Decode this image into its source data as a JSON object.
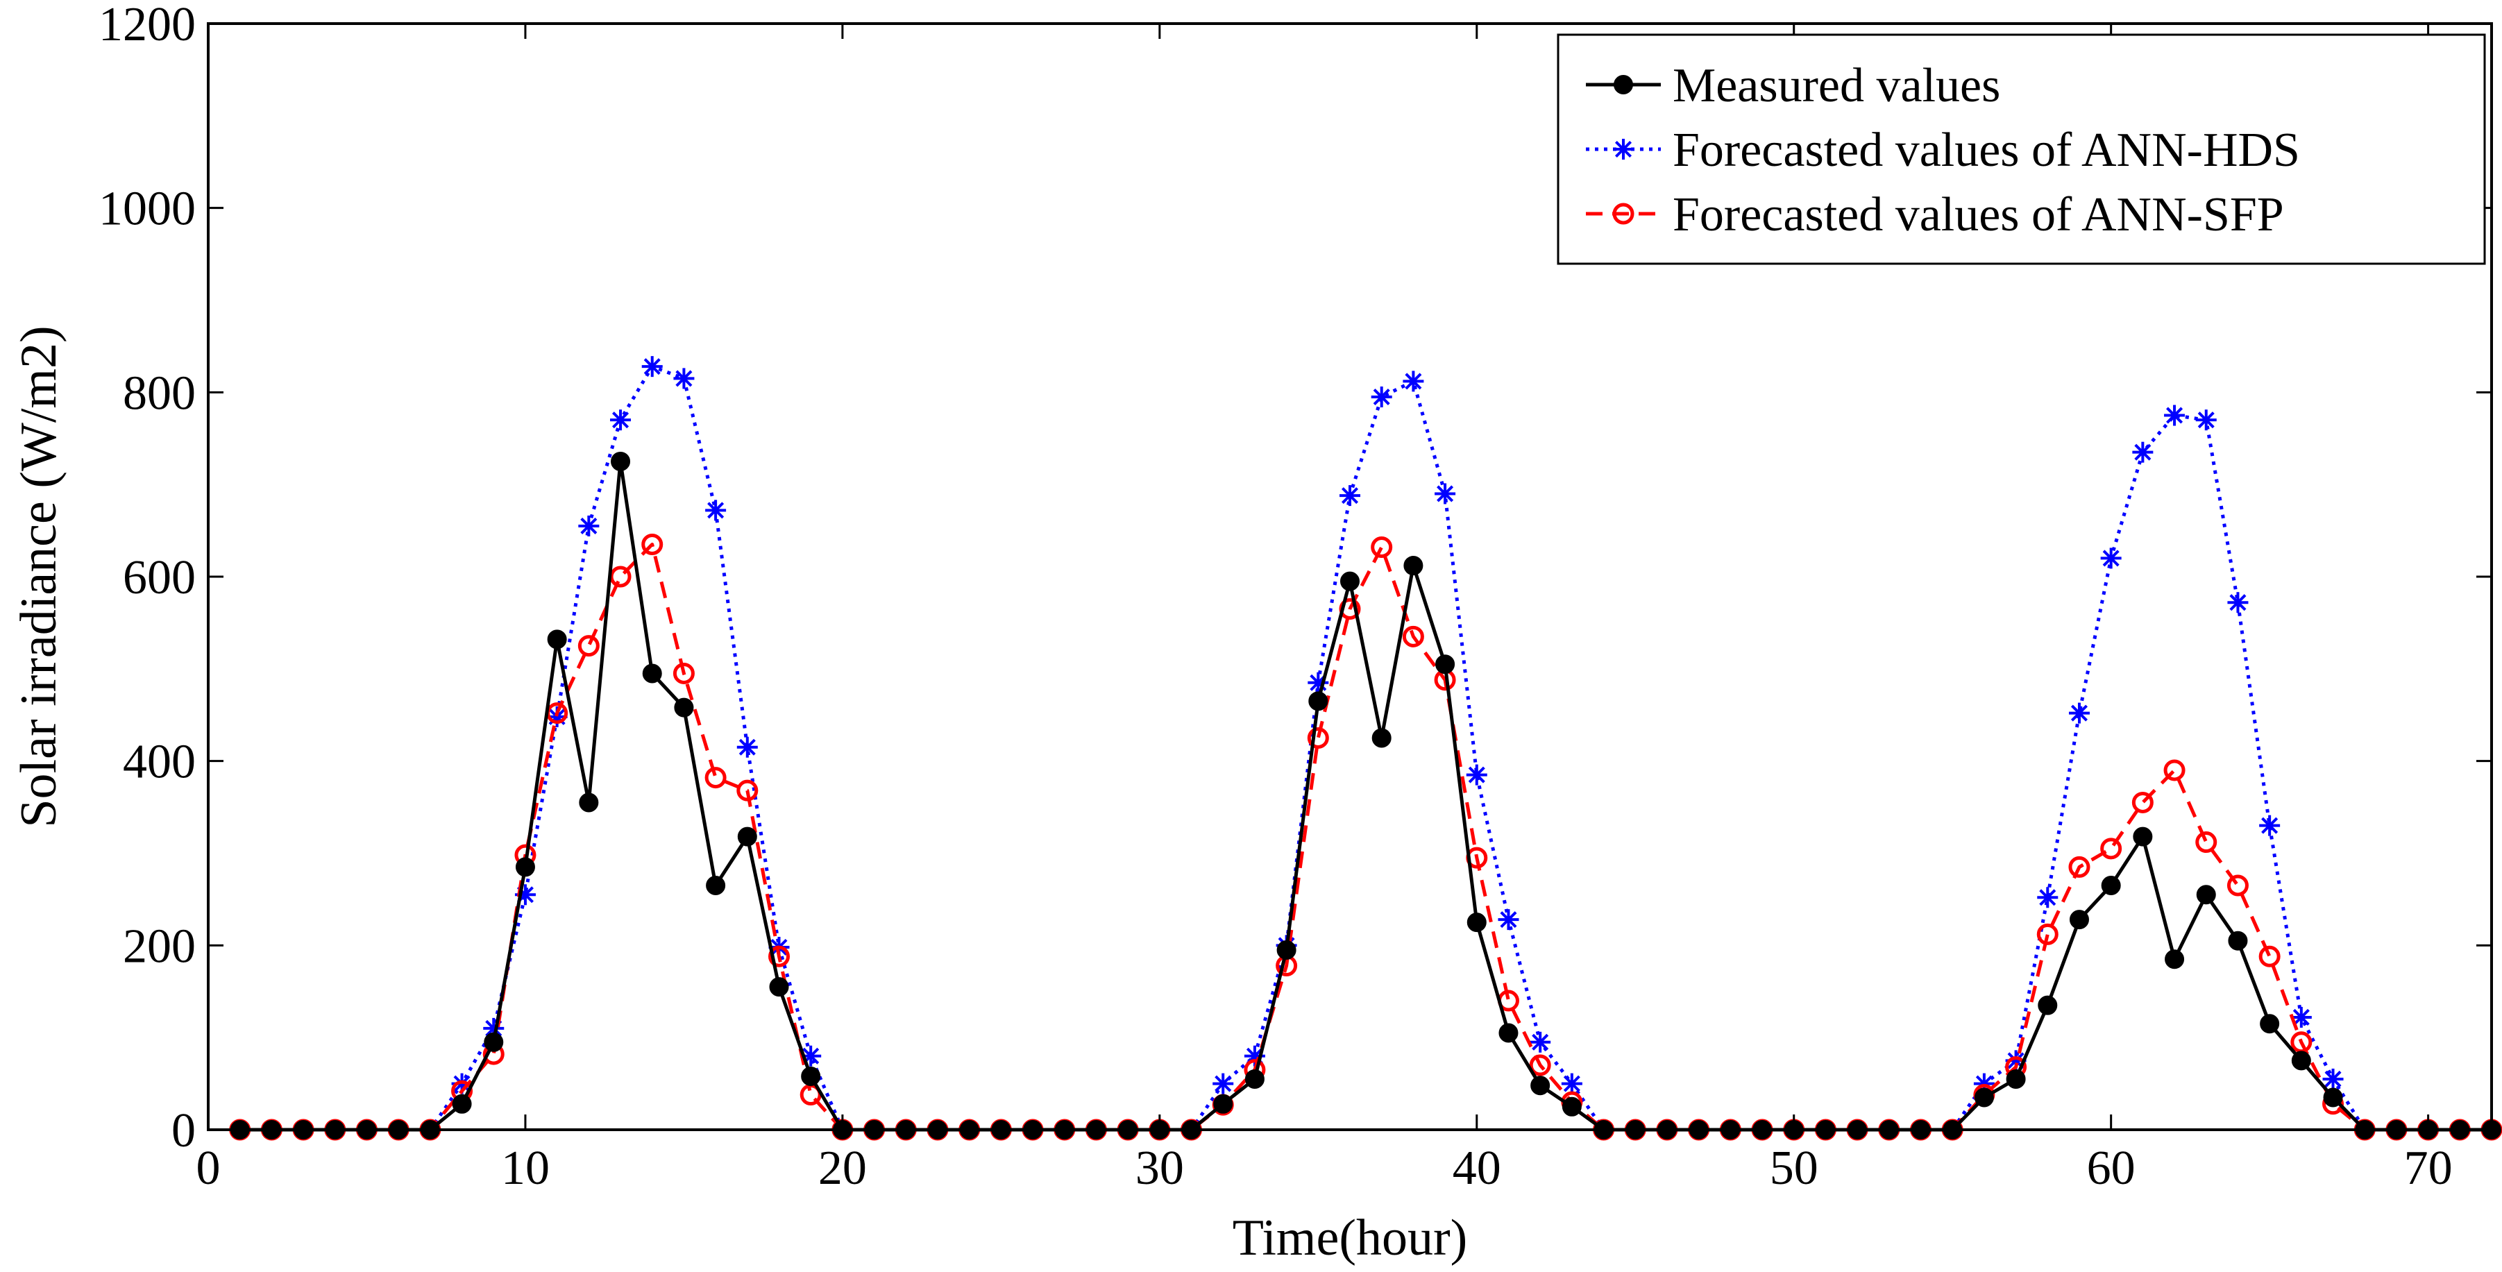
{
  "chart_data": {
    "type": "line",
    "title": "",
    "xlabel": "Time(hour)",
    "ylabel": "Solar irradiance (W/m2)",
    "xlim": [
      0,
      72
    ],
    "ylim": [
      0,
      1200
    ],
    "xticks": [
      0,
      10,
      20,
      30,
      40,
      50,
      60,
      70
    ],
    "yticks": [
      0,
      200,
      400,
      600,
      800,
      1000,
      1200
    ],
    "xtick_labels": [
      "0",
      "10",
      "20",
      "30",
      "40",
      "50",
      "60",
      "70"
    ],
    "ytick_labels": [
      "0",
      "200",
      "400",
      "600",
      "800",
      "1000",
      "1200"
    ],
    "grid": false,
    "legend_position": "top-right",
    "x": [
      1,
      2,
      3,
      4,
      5,
      6,
      7,
      8,
      9,
      10,
      11,
      12,
      13,
      14,
      15,
      16,
      17,
      18,
      19,
      20,
      21,
      22,
      23,
      24,
      25,
      26,
      27,
      28,
      29,
      30,
      31,
      32,
      33,
      34,
      35,
      36,
      37,
      38,
      39,
      40,
      41,
      42,
      43,
      44,
      45,
      46,
      47,
      48,
      49,
      50,
      51,
      52,
      53,
      54,
      55,
      56,
      57,
      58,
      59,
      60,
      61,
      62,
      63,
      64,
      65,
      66,
      67,
      68,
      69,
      70,
      71,
      72
    ],
    "series": [
      {
        "name": "Measured values",
        "color": "#000000",
        "line_style": "solid",
        "marker": "filled-circle",
        "values": [
          0,
          0,
          0,
          0,
          0,
          0,
          0,
          28,
          95,
          285,
          532,
          355,
          725,
          495,
          458,
          265,
          318,
          155,
          58,
          0,
          0,
          0,
          0,
          0,
          0,
          0,
          0,
          0,
          0,
          0,
          0,
          28,
          55,
          195,
          465,
          595,
          425,
          612,
          505,
          225,
          105,
          48,
          25,
          0,
          0,
          0,
          0,
          0,
          0,
          0,
          0,
          0,
          0,
          0,
          0,
          35,
          55,
          135,
          228,
          265,
          318,
          185,
          255,
          205,
          115,
          75,
          35,
          0,
          0,
          0,
          0,
          0
        ]
      },
      {
        "name": "Forecasted values of ANN-HDS",
        "color": "#0000ff",
        "line_style": "dotted",
        "marker": "asterisk",
        "values": [
          0,
          0,
          0,
          0,
          0,
          0,
          0,
          50,
          110,
          255,
          448,
          655,
          770,
          828,
          815,
          672,
          415,
          198,
          80,
          0,
          0,
          0,
          0,
          0,
          0,
          0,
          0,
          0,
          0,
          0,
          0,
          50,
          80,
          200,
          485,
          688,
          795,
          812,
          690,
          385,
          228,
          95,
          50,
          0,
          0,
          0,
          0,
          0,
          0,
          0,
          0,
          0,
          0,
          0,
          0,
          50,
          75,
          252,
          452,
          620,
          735,
          775,
          770,
          572,
          330,
          122,
          55,
          0,
          0,
          0,
          0,
          0
        ]
      },
      {
        "name": "Forecasted values of ANN-SFP",
        "color": "#ff0000",
        "line_style": "dashed",
        "marker": "open-circle",
        "values": [
          0,
          0,
          0,
          0,
          0,
          0,
          0,
          42,
          82,
          298,
          452,
          525,
          600,
          635,
          495,
          382,
          368,
          188,
          38,
          0,
          0,
          0,
          0,
          0,
          0,
          0,
          0,
          0,
          0,
          0,
          0,
          27,
          65,
          178,
          425,
          565,
          632,
          535,
          488,
          295,
          140,
          70,
          30,
          0,
          0,
          0,
          0,
          0,
          0,
          0,
          0,
          0,
          0,
          0,
          0,
          38,
          68,
          212,
          285,
          305,
          355,
          390,
          312,
          265,
          188,
          95,
          28,
          0,
          0,
          0,
          0,
          0
        ]
      }
    ]
  }
}
